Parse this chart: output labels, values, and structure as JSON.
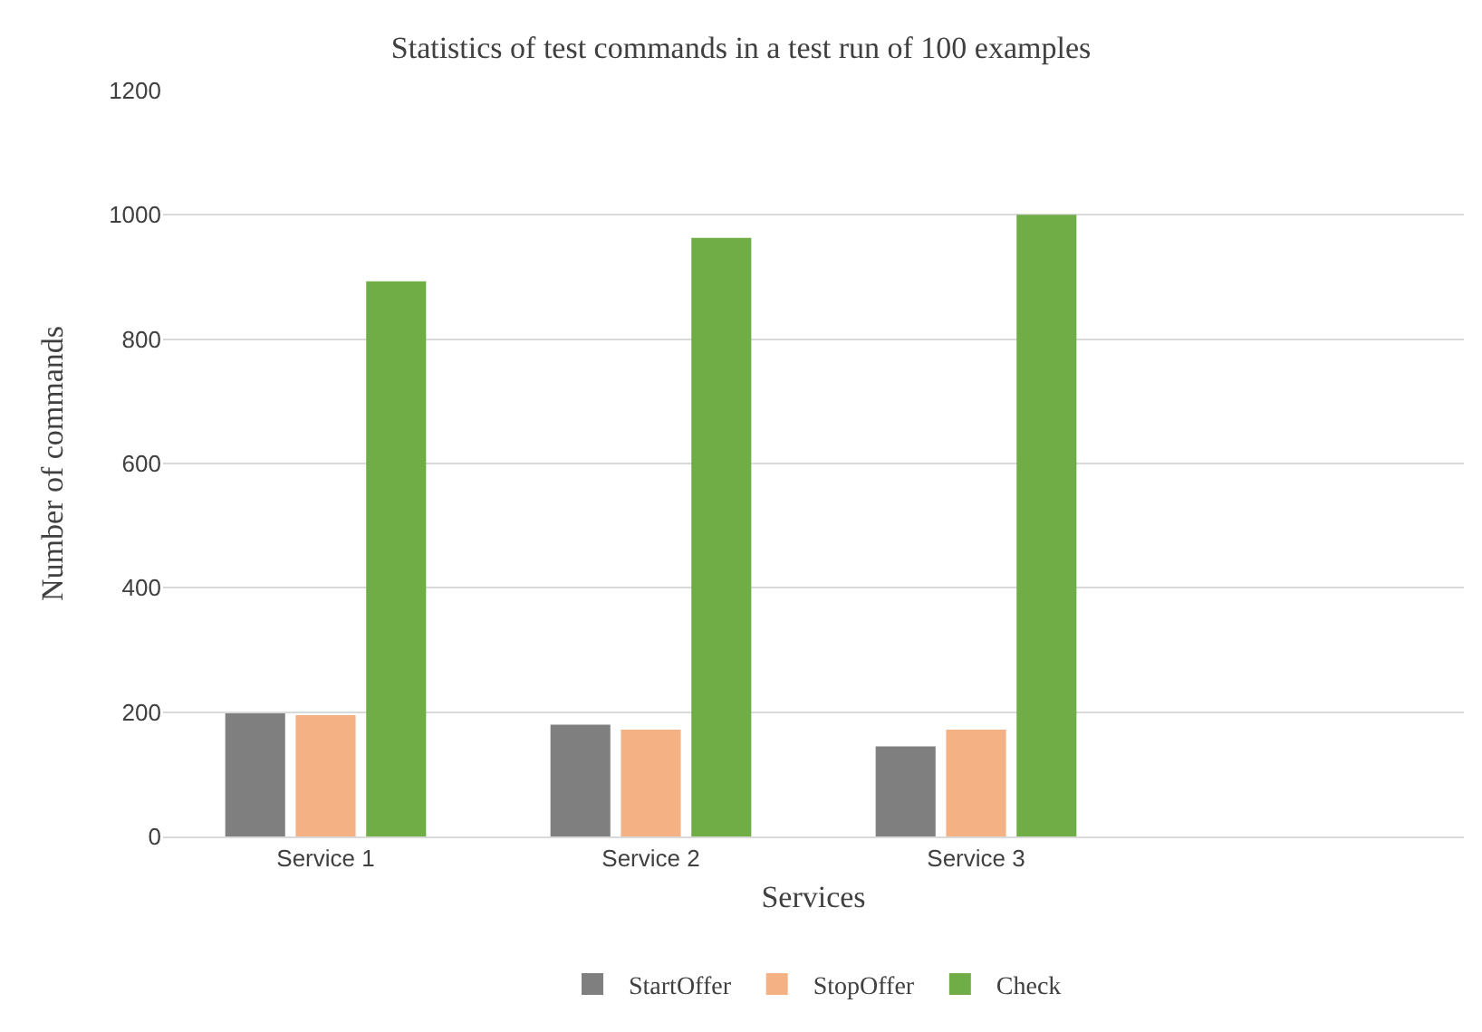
{
  "chart_data": {
    "type": "bar",
    "title": "Statistics of test commands in a test run of 100 examples",
    "xlabel": "Services",
    "ylabel": "Number of commands",
    "categories": [
      "Service 1",
      "Service 2",
      "Service 3",
      null
    ],
    "series": [
      {
        "name": "StartOffer",
        "color": "#7f7f7f",
        "values": [
          198,
          180,
          145,
          null
        ]
      },
      {
        "name": "StopOffer",
        "color": "#f4b183",
        "values": [
          195,
          172,
          172,
          null
        ]
      },
      {
        "name": "Check",
        "color": "#70ad47",
        "values": [
          893,
          963,
          1000,
          null
        ]
      }
    ],
    "ylim": [
      0,
      1200
    ],
    "yticks": [
      0,
      200,
      400,
      600,
      800,
      1000,
      1200
    ],
    "grid": "y",
    "legend": "bottom"
  }
}
